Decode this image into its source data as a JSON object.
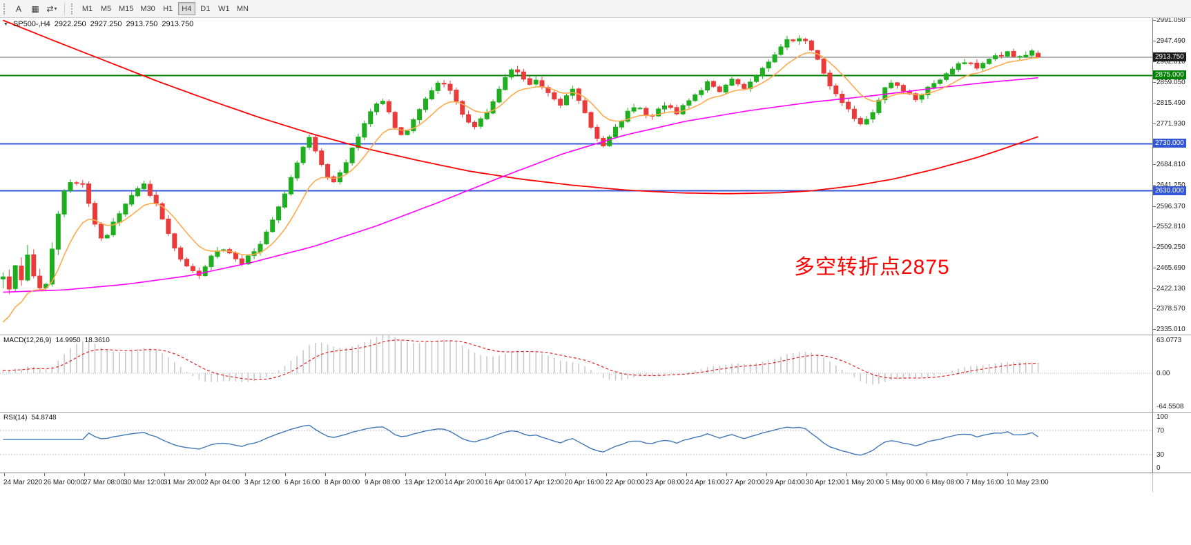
{
  "toolbar": {
    "buttons": [
      {
        "name": "text-tool",
        "glyph": "A"
      },
      {
        "name": "chart-grid",
        "glyph": "▦"
      },
      {
        "name": "chart-shift",
        "glyph": "⇄"
      }
    ],
    "dropdown_caret": "▾",
    "timeframes": [
      {
        "label": "M1",
        "active": false
      },
      {
        "label": "M5",
        "active": false
      },
      {
        "label": "M15",
        "active": false
      },
      {
        "label": "M30",
        "active": false
      },
      {
        "label": "H1",
        "active": false
      },
      {
        "label": "H4",
        "active": true
      },
      {
        "label": "D1",
        "active": false
      },
      {
        "label": "W1",
        "active": false
      },
      {
        "label": "MN",
        "active": false
      }
    ]
  },
  "chart_header": {
    "collapse_icon": "▼",
    "symbol": "SP500-,H4",
    "open": "2922.250",
    "high": "2927.250",
    "low": "2913.750",
    "close": "2913.750"
  },
  "annotation": {
    "text": "多空转折点2875",
    "color": "#FF0000"
  },
  "price_axis": {
    "ticks": [
      "2991.050",
      "2947.490",
      "2902.810",
      "2859.050",
      "2815.490",
      "2771.930",
      "2684.810",
      "2641.250",
      "2596.370",
      "2552.810",
      "2509.250",
      "2465.690",
      "2422.130",
      "2378.570",
      "2335.010"
    ],
    "current_price_label": "2913.750",
    "hline_labels": [
      {
        "text": "2875.000",
        "price": 2875.0,
        "color": "#008000"
      },
      {
        "text": "2730.000",
        "price": 2730.0,
        "color": "#3355D8"
      },
      {
        "text": "2630.000",
        "price": 2630.0,
        "color": "#3355D8"
      }
    ]
  },
  "macd_panel": {
    "title": "MACD(12,26,9)",
    "value_main": "14.9950",
    "value_signal": "18.3610",
    "axis_top": "63.0773",
    "axis_zero": "0.00",
    "axis_bottom": "-64.5508"
  },
  "rsi_panel": {
    "title": "RSI(14)",
    "value": "54.8748",
    "axis_top": "100",
    "axis_upper": "70",
    "axis_lower": "30",
    "axis_bottom": "0"
  },
  "time_axis": [
    "24 Mar 2020",
    "26 Mar 00:00",
    "27 Mar 08:00",
    "30 Mar 12:00",
    "31 Mar 20:00",
    "2 Apr 04:00",
    "3 Apr 12:00",
    "6 Apr 16:00",
    "8 Apr 00:00",
    "9 Apr 08:00",
    "13 Apr 12:00",
    "14 Apr 20:00",
    "16 Apr 04:00",
    "17 Apr 12:00",
    "20 Apr 16:00",
    "22 Apr 00:00",
    "23 Apr 08:00",
    "24 Apr 16:00",
    "27 Apr 20:00",
    "29 Apr 04:00",
    "30 Apr 12:00",
    "1 May 20:00",
    "5 May 00:00",
    "6 May 08:00",
    "7 May 16:00",
    "10 May 23:00"
  ],
  "chart_data": {
    "type": "candlestick",
    "symbol": "SP500",
    "timeframe": "H4",
    "price_range": [
      2335.01,
      2991.05
    ],
    "current_price": 2913.75,
    "last_candle": {
      "open": 2922.25,
      "high": 2927.25,
      "low": 2913.75,
      "close": 2913.75
    },
    "candle_count": 170,
    "close_path_anchors": [
      [
        0,
        2450
      ],
      [
        1,
        2425
      ],
      [
        2,
        2468
      ],
      [
        3,
        2442
      ],
      [
        4,
        2492
      ],
      [
        5,
        2452
      ],
      [
        6,
        2428
      ],
      [
        7,
        2430
      ],
      [
        8,
        2508
      ],
      [
        9,
        2580
      ],
      [
        10,
        2628
      ],
      [
        11,
        2650
      ],
      [
        12,
        2642
      ],
      [
        13,
        2648
      ],
      [
        14,
        2600
      ],
      [
        15,
        2558
      ],
      [
        16,
        2528
      ],
      [
        17,
        2535
      ],
      [
        18,
        2562
      ],
      [
        19,
        2578
      ],
      [
        20,
        2600
      ],
      [
        21,
        2618
      ],
      [
        22,
        2635
      ],
      [
        23,
        2642
      ],
      [
        24,
        2622
      ],
      [
        25,
        2605
      ],
      [
        26,
        2572
      ],
      [
        27,
        2540
      ],
      [
        28,
        2508
      ],
      [
        29,
        2482
      ],
      [
        30,
        2468
      ],
      [
        31,
        2458
      ],
      [
        32,
        2452
      ],
      [
        33,
        2470
      ],
      [
        34,
        2488
      ],
      [
        35,
        2500
      ],
      [
        36,
        2505
      ],
      [
        37,
        2498
      ],
      [
        38,
        2485
      ],
      [
        39,
        2478
      ],
      [
        40,
        2492
      ],
      [
        41,
        2505
      ],
      [
        42,
        2518
      ],
      [
        43,
        2540
      ],
      [
        44,
        2565
      ],
      [
        45,
        2595
      ],
      [
        46,
        2625
      ],
      [
        47,
        2658
      ],
      [
        48,
        2692
      ],
      [
        49,
        2722
      ],
      [
        50,
        2740
      ],
      [
        51,
        2718
      ],
      [
        52,
        2688
      ],
      [
        53,
        2662
      ],
      [
        54,
        2650
      ],
      [
        55,
        2668
      ],
      [
        56,
        2692
      ],
      [
        57,
        2720
      ],
      [
        58,
        2748
      ],
      [
        59,
        2775
      ],
      [
        60,
        2798
      ],
      [
        61,
        2812
      ],
      [
        62,
        2818
      ],
      [
        63,
        2800
      ],
      [
        64,
        2768
      ],
      [
        65,
        2748
      ],
      [
        66,
        2760
      ],
      [
        67,
        2782
      ],
      [
        68,
        2805
      ],
      [
        69,
        2825
      ],
      [
        70,
        2842
      ],
      [
        71,
        2855
      ],
      [
        72,
        2858
      ],
      [
        73,
        2840
      ],
      [
        74,
        2818
      ],
      [
        75,
        2795
      ],
      [
        76,
        2775
      ],
      [
        77,
        2768
      ],
      [
        78,
        2782
      ],
      [
        79,
        2800
      ],
      [
        80,
        2822
      ],
      [
        81,
        2848
      ],
      [
        82,
        2872
      ],
      [
        83,
        2885
      ],
      [
        84,
        2882
      ],
      [
        85,
        2870
      ],
      [
        86,
        2858
      ],
      [
        87,
        2865
      ],
      [
        88,
        2852
      ],
      [
        89,
        2838
      ],
      [
        90,
        2825
      ],
      [
        91,
        2815
      ],
      [
        92,
        2832
      ],
      [
        93,
        2845
      ],
      [
        94,
        2825
      ],
      [
        95,
        2795
      ],
      [
        96,
        2765
      ],
      [
        97,
        2740
      ],
      [
        98,
        2728
      ],
      [
        99,
        2742
      ],
      [
        100,
        2762
      ],
      [
        101,
        2782
      ],
      [
        102,
        2798
      ],
      [
        103,
        2810
      ],
      [
        104,
        2805
      ],
      [
        105,
        2795
      ],
      [
        106,
        2788
      ],
      [
        107,
        2800
      ],
      [
        108,
        2812
      ],
      [
        109,
        2805
      ],
      [
        110,
        2795
      ],
      [
        111,
        2808
      ],
      [
        112,
        2820
      ],
      [
        113,
        2832
      ],
      [
        114,
        2845
      ],
      [
        115,
        2858
      ],
      [
        116,
        2848
      ],
      [
        117,
        2838
      ],
      [
        118,
        2852
      ],
      [
        119,
        2865
      ],
      [
        120,
        2855
      ],
      [
        121,
        2845
      ],
      [
        122,
        2858
      ],
      [
        123,
        2872
      ],
      [
        124,
        2888
      ],
      [
        125,
        2905
      ],
      [
        126,
        2922
      ],
      [
        127,
        2938
      ],
      [
        128,
        2950
      ],
      [
        129,
        2945
      ],
      [
        130,
        2952
      ],
      [
        131,
        2948
      ],
      [
        132,
        2930
      ],
      [
        133,
        2905
      ],
      [
        134,
        2878
      ],
      [
        135,
        2855
      ],
      [
        136,
        2838
      ],
      [
        137,
        2820
      ],
      [
        138,
        2800
      ],
      [
        139,
        2785
      ],
      [
        140,
        2775
      ],
      [
        141,
        2782
      ],
      [
        142,
        2800
      ],
      [
        143,
        2822
      ],
      [
        144,
        2845
      ],
      [
        145,
        2858
      ],
      [
        146,
        2850
      ],
      [
        147,
        2840
      ],
      [
        148,
        2832
      ],
      [
        149,
        2825
      ],
      [
        150,
        2835
      ],
      [
        151,
        2848
      ],
      [
        152,
        2858
      ],
      [
        153,
        2868
      ],
      [
        154,
        2878
      ],
      [
        155,
        2888
      ],
      [
        156,
        2898
      ],
      [
        157,
        2905
      ],
      [
        158,
        2898
      ],
      [
        159,
        2892
      ],
      [
        160,
        2902
      ],
      [
        161,
        2912
      ],
      [
        162,
        2920
      ],
      [
        163,
        2915
      ],
      [
        164,
        2922
      ],
      [
        165,
        2918
      ],
      [
        166,
        2912
      ],
      [
        167,
        2920
      ],
      [
        168,
        2925
      ],
      [
        169,
        2914
      ]
    ],
    "hlines": [
      {
        "price": 2875.0,
        "color": "#008000",
        "width": 2
      },
      {
        "price": 2730.0,
        "color": "#3355D8",
        "width": 2
      },
      {
        "price": 2630.0,
        "color": "#3355D8",
        "width": 2
      }
    ],
    "moving_averages": [
      {
        "name": "ma-slow-red",
        "color": "#FF0000",
        "width": 1.8,
        "points": [
          [
            0,
            2992
          ],
          [
            0.05,
            2948
          ],
          [
            0.1,
            2905
          ],
          [
            0.15,
            2862
          ],
          [
            0.2,
            2822
          ],
          [
            0.25,
            2784
          ],
          [
            0.3,
            2750
          ],
          [
            0.35,
            2720
          ],
          [
            0.4,
            2695
          ],
          [
            0.45,
            2672
          ],
          [
            0.5,
            2655
          ],
          [
            0.55,
            2642
          ],
          [
            0.6,
            2632
          ],
          [
            0.65,
            2626
          ],
          [
            0.7,
            2624
          ],
          [
            0.75,
            2626
          ],
          [
            0.78,
            2630
          ],
          [
            0.82,
            2640
          ],
          [
            0.86,
            2655
          ],
          [
            0.9,
            2676
          ],
          [
            0.94,
            2700
          ],
          [
            0.97,
            2722
          ],
          [
            1.0,
            2745
          ]
        ]
      },
      {
        "name": "ma-mid-magenta",
        "color": "#FF00FF",
        "width": 1.6,
        "points": [
          [
            0,
            2415
          ],
          [
            0.06,
            2420
          ],
          [
            0.12,
            2432
          ],
          [
            0.18,
            2450
          ],
          [
            0.24,
            2478
          ],
          [
            0.3,
            2512
          ],
          [
            0.36,
            2555
          ],
          [
            0.42,
            2605
          ],
          [
            0.48,
            2658
          ],
          [
            0.54,
            2708
          ],
          [
            0.6,
            2748
          ],
          [
            0.66,
            2778
          ],
          [
            0.72,
            2800
          ],
          [
            0.78,
            2818
          ],
          [
            0.84,
            2832
          ],
          [
            0.9,
            2848
          ],
          [
            0.95,
            2860
          ],
          [
            1.0,
            2870
          ]
        ]
      }
    ],
    "ma_fast": {
      "name": "ma-fast-orange",
      "color": "#FFA94D",
      "width": 1.6,
      "period": 10,
      "seed": 2330
    },
    "macd": {
      "range": [
        -64.5508,
        63.0773
      ],
      "current_macd": 14.995,
      "current_signal": 18.361
    },
    "rsi": {
      "range": [
        0,
        100
      ],
      "levels": [
        70,
        30
      ],
      "current": 54.8748
    },
    "colors": {
      "up": "#1FAE1F",
      "down": "#EA3B3B",
      "current_line": "#666666",
      "macd_hist": "#c9c9c9",
      "macd_signal": "#e02020",
      "rsi_line": "#3E76B6",
      "level_dotted": "#b8b8c8"
    }
  }
}
